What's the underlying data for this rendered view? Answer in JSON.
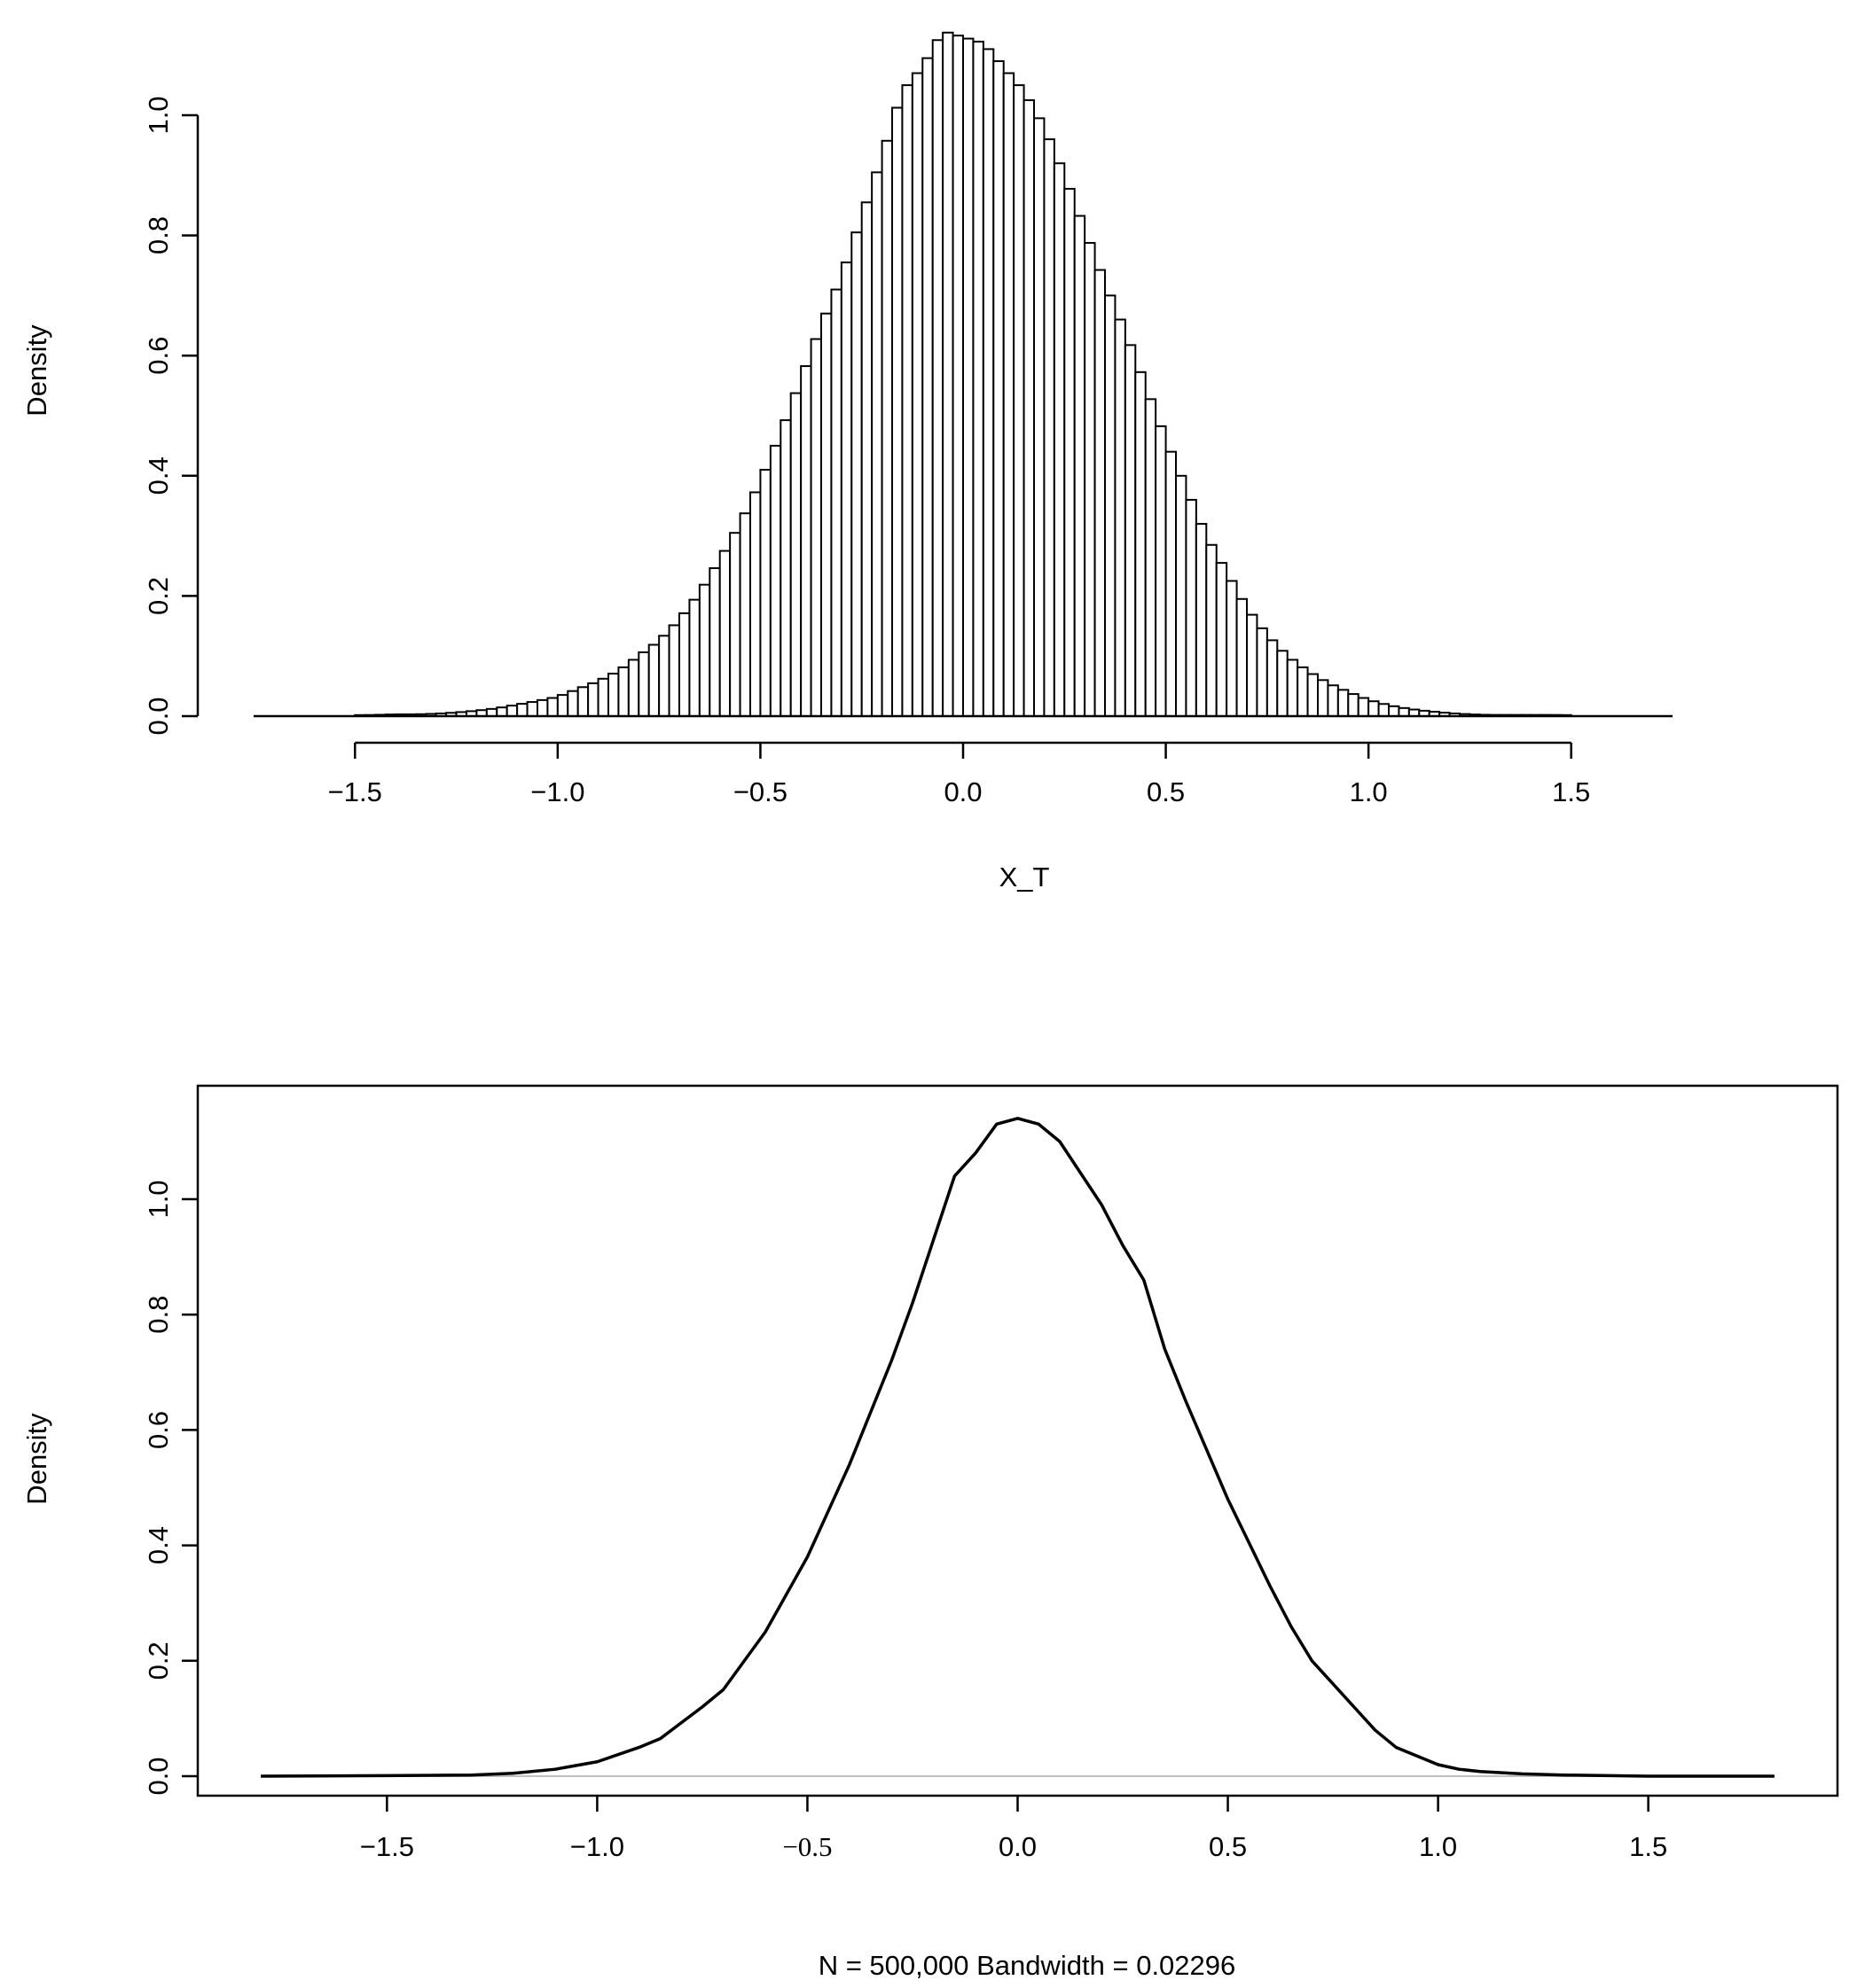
{
  "chart_data": [
    {
      "type": "histogram",
      "title": "",
      "xlabel": "X_T",
      "ylabel": "Density",
      "xlim": [
        -1.75,
        1.75
      ],
      "ylim": [
        0,
        1.15
      ],
      "x_ticks": [
        "−1.5",
        "−1.0",
        "−0.5",
        "0.0",
        "0.5",
        "1.0",
        "1.5"
      ],
      "y_ticks": [
        "0.0",
        "0.2",
        "0.4",
        "0.6",
        "0.8",
        "1.0"
      ],
      "bin_width": 0.025,
      "grid": false,
      "colors": {
        "bar_fill": "#ffffff",
        "bar_stroke": "#000000"
      },
      "bins": [
        {
          "x": -1.75,
          "density": 0.0
        },
        {
          "x": -1.45,
          "density": 0.002
        },
        {
          "x": -1.4,
          "density": 0.003
        },
        {
          "x": -1.35,
          "density": 0.003
        },
        {
          "x": -1.3,
          "density": 0.004
        },
        {
          "x": -1.25,
          "density": 0.006
        },
        {
          "x": -1.2,
          "density": 0.009
        },
        {
          "x": -1.15,
          "density": 0.013
        },
        {
          "x": -1.1,
          "density": 0.019
        },
        {
          "x": -1.05,
          "density": 0.025
        },
        {
          "x": -1.0,
          "density": 0.032
        },
        {
          "x": -0.95,
          "density": 0.045
        },
        {
          "x": -0.9,
          "density": 0.058
        },
        {
          "x": -0.85,
          "density": 0.075
        },
        {
          "x": -0.8,
          "density": 0.1
        },
        {
          "x": -0.75,
          "density": 0.125
        },
        {
          "x": -0.7,
          "density": 0.16
        },
        {
          "x": -0.65,
          "density": 0.205
        },
        {
          "x": -0.6,
          "density": 0.26
        },
        {
          "x": -0.55,
          "density": 0.32
        },
        {
          "x": -0.5,
          "density": 0.39
        },
        {
          "x": -0.45,
          "density": 0.47
        },
        {
          "x": -0.4,
          "density": 0.56
        },
        {
          "x": -0.35,
          "density": 0.65
        },
        {
          "x": -0.3,
          "density": 0.73
        },
        {
          "x": -0.25,
          "density": 0.83
        },
        {
          "x": -0.2,
          "density": 0.93
        },
        {
          "x": -0.15,
          "density": 1.04
        },
        {
          "x": -0.1,
          "density": 1.08
        },
        {
          "x": -0.05,
          "density": 1.14
        },
        {
          "x": 0.0,
          "density": 1.13
        },
        {
          "x": 0.05,
          "density": 1.12
        },
        {
          "x": 0.1,
          "density": 1.08
        },
        {
          "x": 0.15,
          "density": 1.04
        },
        {
          "x": 0.2,
          "density": 0.98
        },
        {
          "x": 0.25,
          "density": 0.9
        },
        {
          "x": 0.3,
          "density": 0.81
        },
        {
          "x": 0.35,
          "density": 0.72
        },
        {
          "x": 0.4,
          "density": 0.64
        },
        {
          "x": 0.45,
          "density": 0.55
        },
        {
          "x": 0.5,
          "density": 0.46
        },
        {
          "x": 0.55,
          "density": 0.38
        },
        {
          "x": 0.6,
          "density": 0.3
        },
        {
          "x": 0.65,
          "density": 0.24
        },
        {
          "x": 0.7,
          "density": 0.18
        },
        {
          "x": 0.75,
          "density": 0.135
        },
        {
          "x": 0.8,
          "density": 0.1
        },
        {
          "x": 0.85,
          "density": 0.075
        },
        {
          "x": 0.9,
          "density": 0.055
        },
        {
          "x": 0.95,
          "density": 0.04
        },
        {
          "x": 1.0,
          "density": 0.027
        },
        {
          "x": 1.05,
          "density": 0.018
        },
        {
          "x": 1.1,
          "density": 0.012
        },
        {
          "x": 1.15,
          "density": 0.008
        },
        {
          "x": 1.2,
          "density": 0.005
        },
        {
          "x": 1.25,
          "density": 0.003
        },
        {
          "x": 1.3,
          "density": 0.002
        },
        {
          "x": 1.45,
          "density": 0.002
        },
        {
          "x": 1.75,
          "density": 0.0
        }
      ]
    },
    {
      "type": "line",
      "title": "",
      "xlabel": "N = 500,000 Bandwidth = 0.02296",
      "ylabel": "Density",
      "xlim": [
        -1.95,
        1.95
      ],
      "ylim": [
        -0.05,
        1.2
      ],
      "x_ticks": [
        "−1.5",
        "−1.0",
        "−0.5",
        "0.0",
        "0.5",
        "1.0",
        "1.5"
      ],
      "y_ticks": [
        "0.0",
        "0.2",
        "0.4",
        "0.6",
        "0.8",
        "1.0"
      ],
      "zero_line": true,
      "box": true,
      "grid": false,
      "colors": {
        "line": "#000000",
        "zero_line": "#bfbfbf",
        "tail": "#555555"
      },
      "series": [
        {
          "x": [
            -1.8,
            -1.5,
            -1.3,
            -1.2,
            -1.1,
            -1.0,
            -0.9,
            -0.85,
            -0.75,
            -0.7,
            -0.6,
            -0.5,
            -0.4,
            -0.3,
            -0.25,
            -0.15,
            -0.1,
            -0.05,
            0.0,
            0.05,
            0.1,
            0.2,
            0.25,
            0.3,
            0.35,
            0.4,
            0.5,
            0.6,
            0.65,
            0.7,
            0.75,
            0.85,
            0.9,
            1.0,
            1.05,
            1.1,
            1.2,
            1.3,
            1.5,
            1.8
          ],
          "y": [
            0.0,
            0.001,
            0.002,
            0.005,
            0.012,
            0.025,
            0.05,
            0.065,
            0.12,
            0.15,
            0.25,
            0.38,
            0.54,
            0.72,
            0.82,
            1.04,
            1.08,
            1.13,
            1.14,
            1.13,
            1.1,
            0.99,
            0.92,
            0.86,
            0.74,
            0.65,
            0.48,
            0.33,
            0.26,
            0.2,
            0.16,
            0.08,
            0.05,
            0.02,
            0.012,
            0.008,
            0.004,
            0.002,
            0.0,
            0.0
          ]
        }
      ]
    }
  ]
}
